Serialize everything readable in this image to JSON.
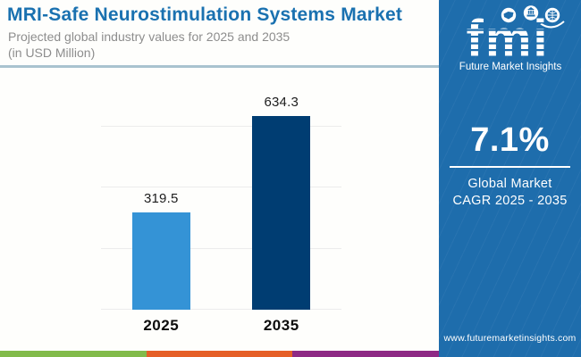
{
  "header": {
    "title": "MRI-Safe Neurostimulation Systems Market",
    "subtitle_line1": "Projected global industry values for 2025 and 2035",
    "subtitle_line2": "(in USD Million)"
  },
  "logo": {
    "abbr": "fmi",
    "name": "Future Market Insights",
    "icon_names": [
      "us-map-icon",
      "landmark-icon",
      "globe-icon"
    ]
  },
  "sidebar": {
    "cagr_value": "7.1%",
    "cagr_label_line1": "Global Market",
    "cagr_label_line2": "CAGR 2025 - 2035",
    "website": "www.futuremarketinsights.com"
  },
  "chart_data": {
    "type": "bar",
    "categories": [
      "2025",
      "2035"
    ],
    "values": [
      319.5,
      634.3
    ],
    "value_labels": [
      "319.5",
      "634.3"
    ],
    "series_colors": [
      "#3493d6",
      "#003d72"
    ],
    "title": "MRI-Safe Neurostimulation Systems Market",
    "xlabel": "",
    "ylabel": "",
    "units": "USD Million",
    "ylim": [
      0,
      600
    ],
    "gridline_step": 200,
    "grid": true,
    "legend": false
  },
  "colors": {
    "title_blue": "#1a71b0",
    "sidebar_blue": "#1e6dac",
    "bar_2025": "#3493d6",
    "bar_2035": "#003d72",
    "header_divider": "#a9c3cf",
    "gridline": "#ececec",
    "stripe_green": "#82bb4a",
    "stripe_orange": "#e55f27",
    "stripe_purple": "#8e2a85"
  }
}
